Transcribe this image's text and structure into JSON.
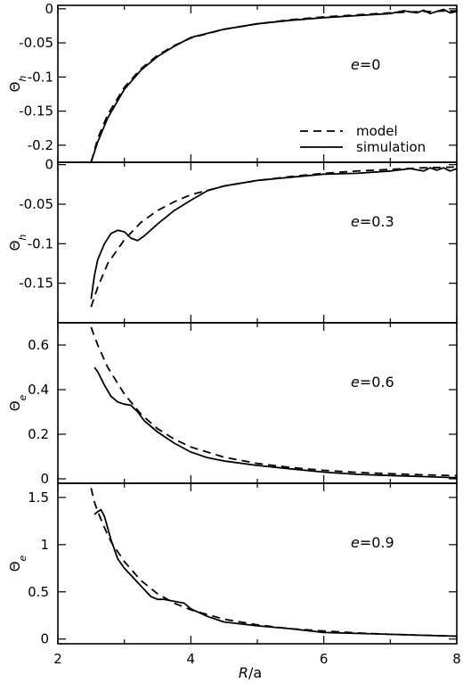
{
  "chart_data": [
    {
      "type": "line",
      "ylabel": "Θ",
      "ylabel_sub": "h",
      "annotation_var": "e",
      "annotation_val": "=0",
      "xlim": [
        2,
        8
      ],
      "ylim": [
        -0.225,
        0.005
      ],
      "yticks": [
        0,
        -0.05,
        -0.1,
        -0.15,
        -0.2
      ],
      "yticklabels": [
        "0",
        "-0.05",
        "-0.1",
        "-0.15",
        "-0.2"
      ],
      "legend": {
        "position": "bottom-right",
        "entries": [
          {
            "label": "model",
            "style": "dashed"
          },
          {
            "label": "simulation",
            "style": "solid"
          }
        ]
      },
      "series": [
        {
          "name": "model",
          "style": "dashed",
          "x": [
            2.5,
            2.6,
            2.75,
            3.0,
            3.25,
            3.5,
            3.75,
            4.0,
            4.5,
            5.0,
            5.5,
            6.0,
            6.5,
            7.0,
            7.5,
            8.0
          ],
          "y": [
            -0.225,
            -0.19,
            -0.155,
            -0.115,
            -0.088,
            -0.068,
            -0.054,
            -0.043,
            -0.03,
            -0.022,
            -0.016,
            -0.012,
            -0.009,
            -0.006,
            -0.004,
            -0.003
          ]
        },
        {
          "name": "simulation",
          "style": "solid",
          "x": [
            2.5,
            2.6,
            2.75,
            3.0,
            3.25,
            3.5,
            3.75,
            4.0,
            4.25,
            4.5,
            5.0,
            5.5,
            6.0,
            6.5,
            7.0,
            7.2,
            7.4,
            7.5,
            7.6,
            7.7,
            7.8,
            7.9,
            8.0
          ],
          "y": [
            -0.225,
            -0.195,
            -0.16,
            -0.118,
            -0.09,
            -0.07,
            -0.055,
            -0.042,
            -0.036,
            -0.03,
            -0.022,
            -0.017,
            -0.013,
            -0.01,
            -0.007,
            -0.003,
            -0.006,
            -0.002,
            -0.007,
            -0.004,
            -0.001,
            -0.006,
            -0.004
          ]
        }
      ]
    },
    {
      "type": "line",
      "ylabel": "Θ",
      "ylabel_sub": "h",
      "annotation_var": "e",
      "annotation_val": "=0.3",
      "xlim": [
        2,
        8
      ],
      "ylim": [
        -0.2,
        0.003
      ],
      "yticks": [
        0,
        -0.05,
        -0.1,
        -0.15
      ],
      "yticklabels": [
        "0",
        "-0.05",
        "-0.1",
        "-0.15"
      ],
      "series": [
        {
          "name": "model",
          "style": "dashed",
          "x": [
            2.5,
            2.6,
            2.75,
            3.0,
            3.25,
            3.5,
            3.75,
            4.0,
            4.5,
            5.0,
            5.5,
            6.0,
            6.5,
            7.0,
            7.5,
            8.0
          ],
          "y": [
            -0.18,
            -0.155,
            -0.125,
            -0.095,
            -0.073,
            -0.058,
            -0.047,
            -0.038,
            -0.027,
            -0.02,
            -0.015,
            -0.011,
            -0.008,
            -0.006,
            -0.004,
            -0.003
          ]
        },
        {
          "name": "simulation",
          "style": "solid",
          "x": [
            2.5,
            2.55,
            2.6,
            2.7,
            2.8,
            2.9,
            3.0,
            3.1,
            3.2,
            3.3,
            3.5,
            3.75,
            4.0,
            4.25,
            4.5,
            5.0,
            5.5,
            6.0,
            6.5,
            7.0,
            7.3,
            7.5,
            7.6,
            7.7,
            7.8,
            7.9,
            8.0
          ],
          "y": [
            -0.17,
            -0.14,
            -0.12,
            -0.1,
            -0.087,
            -0.083,
            -0.085,
            -0.093,
            -0.096,
            -0.09,
            -0.075,
            -0.058,
            -0.045,
            -0.033,
            -0.027,
            -0.02,
            -0.016,
            -0.012,
            -0.011,
            -0.008,
            -0.005,
            -0.008,
            -0.004,
            -0.007,
            -0.004,
            -0.008,
            -0.005
          ]
        }
      ]
    },
    {
      "type": "line",
      "ylabel": "Θ",
      "ylabel_sub": "e",
      "annotation_var": "e",
      "annotation_val": "=0.6",
      "xlim": [
        2,
        8
      ],
      "ylim": [
        -0.02,
        0.7
      ],
      "yticks": [
        0,
        0.2,
        0.4,
        0.6
      ],
      "yticklabels": [
        "0",
        "0.2",
        "0.4",
        "0.6"
      ],
      "series": [
        {
          "name": "model",
          "style": "dashed",
          "x": [
            2.5,
            2.6,
            2.75,
            3.0,
            3.25,
            3.5,
            3.75,
            4.0,
            4.5,
            5.0,
            5.5,
            6.0,
            6.5,
            7.0,
            7.5,
            8.0
          ],
          "y": [
            0.68,
            0.6,
            0.5,
            0.38,
            0.29,
            0.225,
            0.178,
            0.143,
            0.097,
            0.069,
            0.051,
            0.038,
            0.029,
            0.023,
            0.018,
            0.014
          ]
        },
        {
          "name": "simulation",
          "style": "solid",
          "x": [
            2.55,
            2.6,
            2.7,
            2.8,
            2.9,
            3.0,
            3.1,
            3.2,
            3.3,
            3.5,
            3.75,
            4.0,
            4.25,
            4.5,
            5.0,
            5.5,
            6.0,
            6.5,
            7.0,
            7.5,
            8.0
          ],
          "y": [
            0.5,
            0.48,
            0.42,
            0.37,
            0.345,
            0.335,
            0.33,
            0.3,
            0.26,
            0.21,
            0.16,
            0.12,
            0.095,
            0.08,
            0.06,
            0.045,
            0.03,
            0.02,
            0.015,
            0.01,
            0.005
          ]
        }
      ]
    },
    {
      "type": "line",
      "ylabel": "Θ",
      "ylabel_sub": "e",
      "annotation_var": "e",
      "annotation_val": "=0.9",
      "xlabel_var": "R",
      "xlabel_rest": "/a",
      "xlim": [
        2,
        8
      ],
      "ylim": [
        -0.05,
        1.65
      ],
      "yticks": [
        0,
        0.5,
        1,
        1.5
      ],
      "yticklabels": [
        "0",
        "0.5",
        "1",
        "1.5"
      ],
      "xticks": [
        2,
        4,
        6,
        8
      ],
      "xticklabels": [
        "2",
        "4",
        "6",
        "8"
      ],
      "series": [
        {
          "name": "model",
          "style": "dashed",
          "x": [
            2.5,
            2.55,
            2.6,
            2.7,
            2.8,
            3.0,
            3.25,
            3.5,
            3.75,
            4.0,
            4.5,
            5.0,
            5.5,
            6.0,
            6.5,
            7.0,
            7.5,
            8.0
          ],
          "y": [
            1.6,
            1.45,
            1.35,
            1.18,
            1.03,
            0.82,
            0.62,
            0.48,
            0.38,
            0.31,
            0.21,
            0.15,
            0.11,
            0.085,
            0.065,
            0.05,
            0.04,
            0.03
          ]
        },
        {
          "name": "simulation",
          "style": "solid",
          "x": [
            2.55,
            2.6,
            2.65,
            2.7,
            2.8,
            2.9,
            3.0,
            3.2,
            3.4,
            3.5,
            3.6,
            3.75,
            3.9,
            4.0,
            4.25,
            4.5,
            5.0,
            5.5,
            6.0,
            6.5,
            7.0,
            7.5,
            8.0
          ],
          "y": [
            1.32,
            1.35,
            1.37,
            1.3,
            1.05,
            0.85,
            0.75,
            0.6,
            0.45,
            0.42,
            0.42,
            0.4,
            0.38,
            0.32,
            0.24,
            0.18,
            0.14,
            0.11,
            0.07,
            0.06,
            0.05,
            0.04,
            0.03
          ]
        }
      ]
    }
  ]
}
